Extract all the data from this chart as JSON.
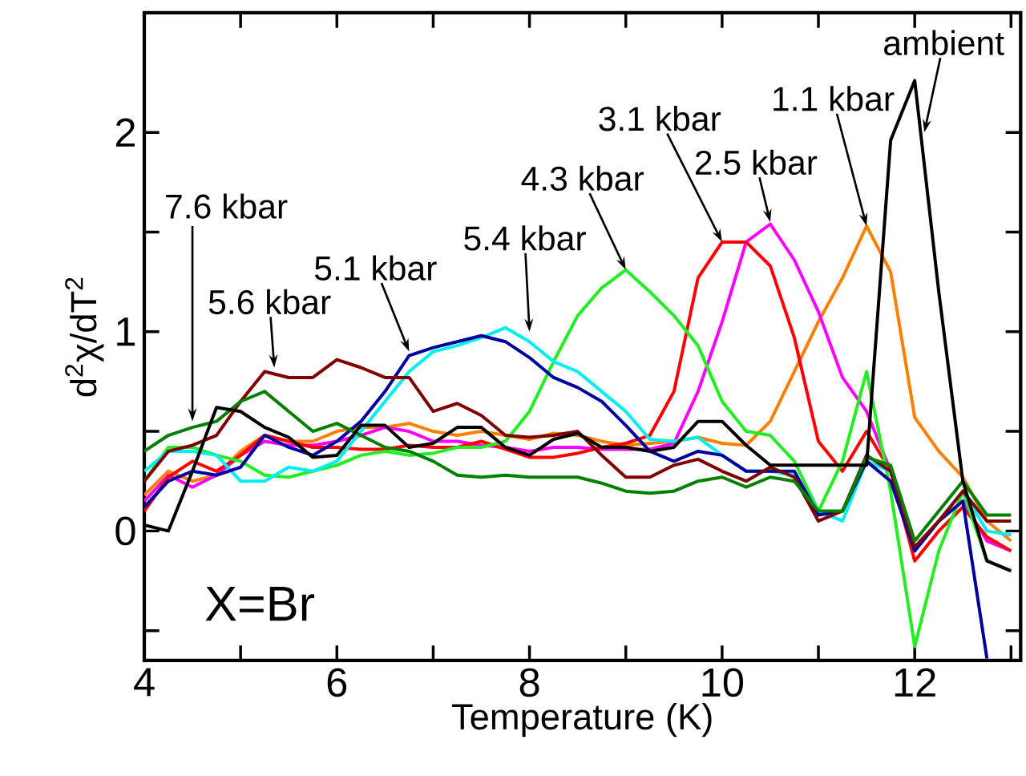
{
  "chart_data": {
    "type": "line",
    "xlabel": "Temperature (K)",
    "ylabel": "d$^{2}$χ/dT$^{2}$",
    "x": [
      4,
      4.25,
      4.5,
      4.75,
      5,
      5.25,
      5.5,
      5.75,
      6,
      6.25,
      6.5,
      6.75,
      7,
      7.25,
      7.5,
      7.75,
      8,
      8.25,
      8.5,
      8.75,
      9,
      9.25,
      9.5,
      9.75,
      10,
      10.25,
      10.5,
      10.75,
      11,
      11.25,
      11.5,
      11.75,
      12,
      12.25,
      12.5,
      12.75,
      13
    ],
    "series": [
      {
        "color": "#000000",
        "values": [
          0.03,
          0.0,
          0.3,
          0.62,
          0.6,
          0.52,
          0.47,
          0.37,
          0.38,
          0.53,
          0.53,
          0.42,
          0.44,
          0.52,
          0.52,
          0.42,
          0.38,
          0.46,
          0.49,
          0.42,
          0.42,
          0.4,
          0.42,
          0.55,
          0.55,
          0.43,
          0.33,
          0.33,
          0.33,
          0.33,
          0.33,
          1.96,
          2.26,
          1.2,
          0.25,
          -0.15,
          -0.2
        ]
      },
      {
        "color": "#ff8000",
        "values": [
          0.18,
          0.3,
          0.25,
          0.28,
          0.4,
          0.48,
          0.45,
          0.45,
          0.5,
          0.52,
          0.52,
          0.54,
          0.5,
          0.48,
          0.5,
          0.48,
          0.46,
          0.49,
          0.48,
          0.45,
          0.43,
          0.44,
          0.45,
          0.47,
          0.44,
          0.43,
          0.55,
          0.8,
          1.05,
          1.27,
          1.53,
          1.3,
          0.57,
          0.4,
          0.27,
          0.05,
          -0.05
        ]
      },
      {
        "color": "#ff00ff",
        "values": [
          0.15,
          0.28,
          0.22,
          0.28,
          0.38,
          0.45,
          0.43,
          0.43,
          0.45,
          0.48,
          0.52,
          0.5,
          0.45,
          0.45,
          0.43,
          0.42,
          0.4,
          0.42,
          0.42,
          0.41,
          0.41,
          0.41,
          0.44,
          0.7,
          1.05,
          1.45,
          1.54,
          1.36,
          1.1,
          0.77,
          0.6,
          0.3,
          -0.1,
          0.05,
          0.15,
          -0.05,
          -0.1
        ]
      },
      {
        "color": "#ff0000",
        "values": [
          0.1,
          0.27,
          0.35,
          0.3,
          0.38,
          0.48,
          0.45,
          0.42,
          0.42,
          0.41,
          0.41,
          0.43,
          0.42,
          0.42,
          0.45,
          0.41,
          0.37,
          0.37,
          0.39,
          0.42,
          0.44,
          0.48,
          0.7,
          1.27,
          1.45,
          1.45,
          1.33,
          0.97,
          0.45,
          0.3,
          0.5,
          0.3,
          -0.15,
          0.0,
          0.12,
          -0.03,
          -0.1
        ]
      },
      {
        "color": "#22ee22",
        "values": [
          0.25,
          0.42,
          0.42,
          0.38,
          0.35,
          0.28,
          0.27,
          0.3,
          0.33,
          0.38,
          0.4,
          0.38,
          0.39,
          0.42,
          0.42,
          0.45,
          0.6,
          0.85,
          1.08,
          1.22,
          1.31,
          1.2,
          1.08,
          0.93,
          0.65,
          0.5,
          0.48,
          0.35,
          0.1,
          0.35,
          0.8,
          0.2,
          -0.58,
          -0.1,
          0.2,
          -0.15,
          -0.2
        ]
      },
      {
        "color": "#00eeee",
        "values": [
          0.3,
          0.4,
          0.4,
          0.38,
          0.25,
          0.25,
          0.32,
          0.3,
          0.35,
          0.5,
          0.65,
          0.8,
          0.9,
          0.93,
          0.97,
          1.02,
          0.95,
          0.85,
          0.8,
          0.7,
          0.6,
          0.46,
          0.45,
          0.47,
          0.38,
          0.3,
          0.3,
          0.28,
          0.1,
          0.05,
          0.35,
          0.3,
          -0.1,
          0.05,
          0.2,
          0.0,
          -0.02
        ]
      },
      {
        "color": "#0000a0",
        "values": [
          0.12,
          0.25,
          0.3,
          0.28,
          0.32,
          0.48,
          0.42,
          0.38,
          0.45,
          0.55,
          0.7,
          0.88,
          0.92,
          0.95,
          0.98,
          0.95,
          0.87,
          0.77,
          0.72,
          0.65,
          0.53,
          0.4,
          0.35,
          0.4,
          0.38,
          0.3,
          0.3,
          0.3,
          0.08,
          0.1,
          0.35,
          0.25,
          -0.1,
          0.05,
          0.15,
          -0.64,
          null
        ]
      },
      {
        "color": "#800000",
        "values": [
          0.25,
          0.4,
          0.43,
          0.48,
          0.65,
          0.8,
          0.77,
          0.77,
          0.86,
          0.82,
          0.77,
          0.77,
          0.6,
          0.64,
          0.58,
          0.48,
          0.47,
          0.48,
          0.5,
          0.38,
          0.27,
          0.27,
          0.33,
          0.36,
          0.3,
          0.25,
          0.32,
          0.27,
          0.05,
          0.1,
          0.38,
          0.3,
          -0.08,
          0.05,
          0.2,
          0.05,
          0.05
        ]
      },
      {
        "color": "#008000",
        "values": [
          0.4,
          0.48,
          0.52,
          0.55,
          0.65,
          0.7,
          0.6,
          0.5,
          0.54,
          0.48,
          0.42,
          0.4,
          0.35,
          0.28,
          0.27,
          0.28,
          0.27,
          0.27,
          0.27,
          0.24,
          0.2,
          0.19,
          0.2,
          0.25,
          0.27,
          0.22,
          0.27,
          0.25,
          0.1,
          0.1,
          0.37,
          0.33,
          -0.05,
          0.1,
          0.25,
          0.08,
          0.08
        ]
      }
    ],
    "annotations": [
      {
        "text": "ambient",
        "x": 12.1,
        "y": 2.0
      },
      {
        "text": "1.1 kbar",
        "x": 11.5,
        "y": 1.53
      },
      {
        "text": "2.5 kbar",
        "x": 10.5,
        "y": 1.55
      },
      {
        "text": "3.1 kbar",
        "x": 10.0,
        "y": 1.45
      },
      {
        "text": "4.3 kbar",
        "x": 9.0,
        "y": 1.31
      },
      {
        "text": "5.4 kbar",
        "x": 8.0,
        "y": 1.0
      },
      {
        "text": "5.1 kbar",
        "x": 6.75,
        "y": 0.9
      },
      {
        "text": "5.6 kbar",
        "x": 5.35,
        "y": 0.82
      },
      {
        "text": "7.6 kbar",
        "x": 4.5,
        "y": 0.55
      },
      "X=Br"
    ],
    "xlim": [
      4,
      13.1
    ],
    "ylim": [
      -0.65,
      2.6
    ],
    "xticks": [
      4,
      {
        "value": 5,
        "label": null
      },
      6,
      {
        "value": 7,
        "label": null
      },
      8,
      {
        "value": 9,
        "label": null
      },
      10,
      {
        "value": 11,
        "label": null
      },
      12,
      {
        "value": 13,
        "label": null
      }
    ],
    "yticks": [
      {
        "value": -0.5,
        "label": null
      },
      0,
      {
        "value": 0.5,
        "label": null
      },
      1,
      {
        "value": 1.5,
        "label": null
      },
      2
    ],
    "grid": false,
    "marker": "none",
    "line_style": "solid"
  }
}
